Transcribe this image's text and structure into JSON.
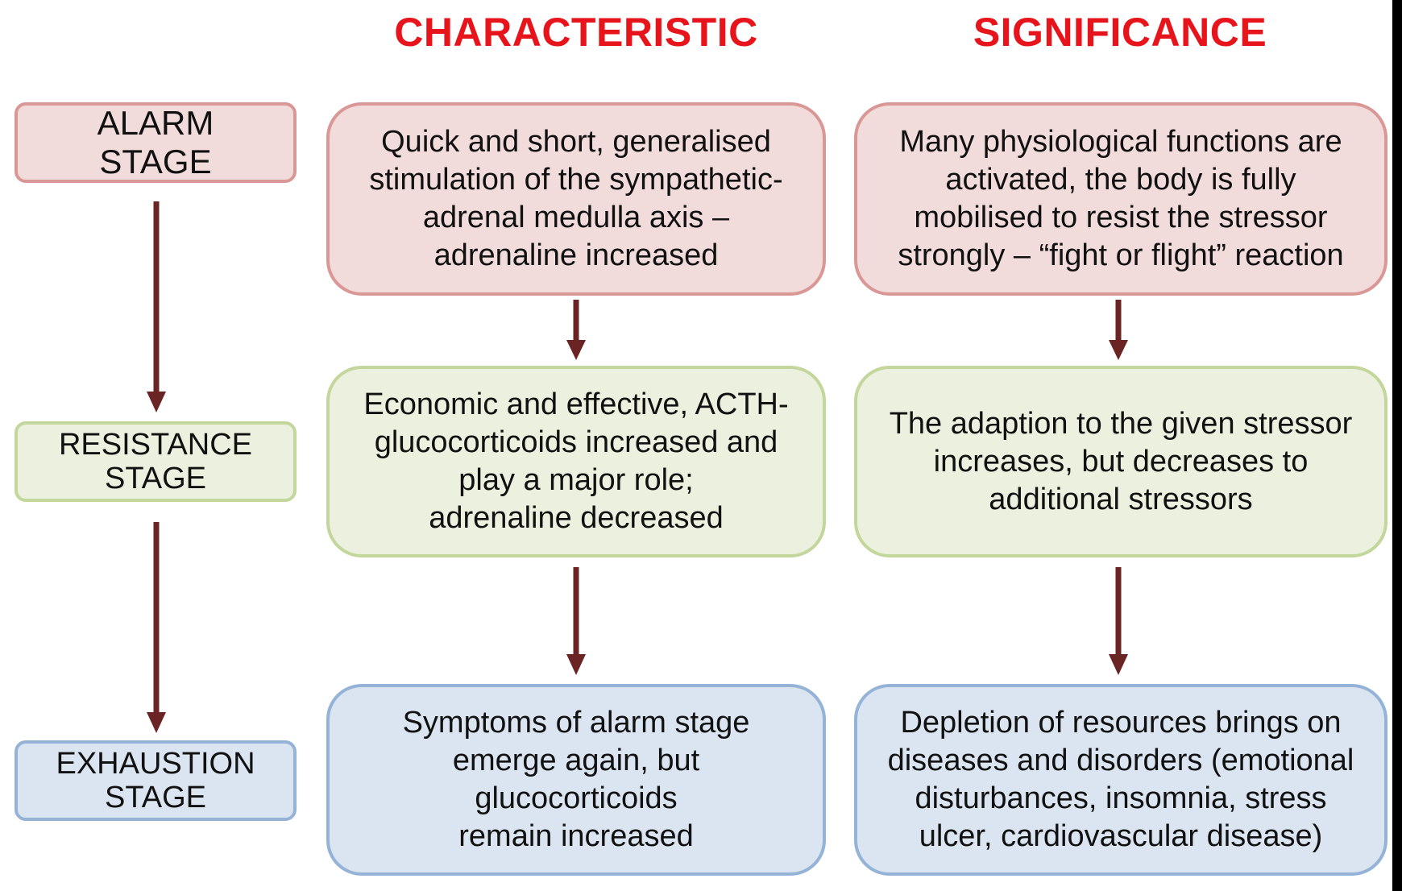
{
  "headers": {
    "characteristic": "CHARACTERISTIC",
    "significance": "SIGNIFICANCE"
  },
  "stages": {
    "alarm": "ALARM\nSTAGE",
    "resistance": "RESISTANCE\nSTAGE",
    "exhaustion": "EXHAUSTION\nSTAGE"
  },
  "characteristic": {
    "alarm": "Quick and short, generalised\nstimulation of the sympathetic-\nadrenal medulla axis –\nadrenaline increased",
    "resistance": "Economic and effective, ACTH-\nglucocorticoids increased and\nplay a major role;\nadrenaline decreased",
    "exhaustion": "Symptoms of alarm stage\nemerge again, but\nglucocorticoids\nremain increased"
  },
  "significance": {
    "alarm": "Many physiological functions are\nactivated, the body is fully\nmobilised to resist the stressor\nstrongly – “fight or flight” reaction",
    "resistance": "The adaption to the given stressor\nincreases, but decreases to\nadditional stressors",
    "exhaustion": "Depletion of resources brings on\ndiseases and disorders (emotional\ndisturbances, insomnia, stress\nulcer, cardiovascular disease)"
  },
  "colors": {
    "header": "#e8141b",
    "alarm_fill": "#f2dcdb",
    "alarm_border": "#d99795",
    "resistance_fill": "#ebf1de",
    "resistance_border": "#c3d69b",
    "exhaustion_fill": "#dbe5f1",
    "exhaustion_border": "#95b3d7",
    "arrow": "#6b2424"
  }
}
